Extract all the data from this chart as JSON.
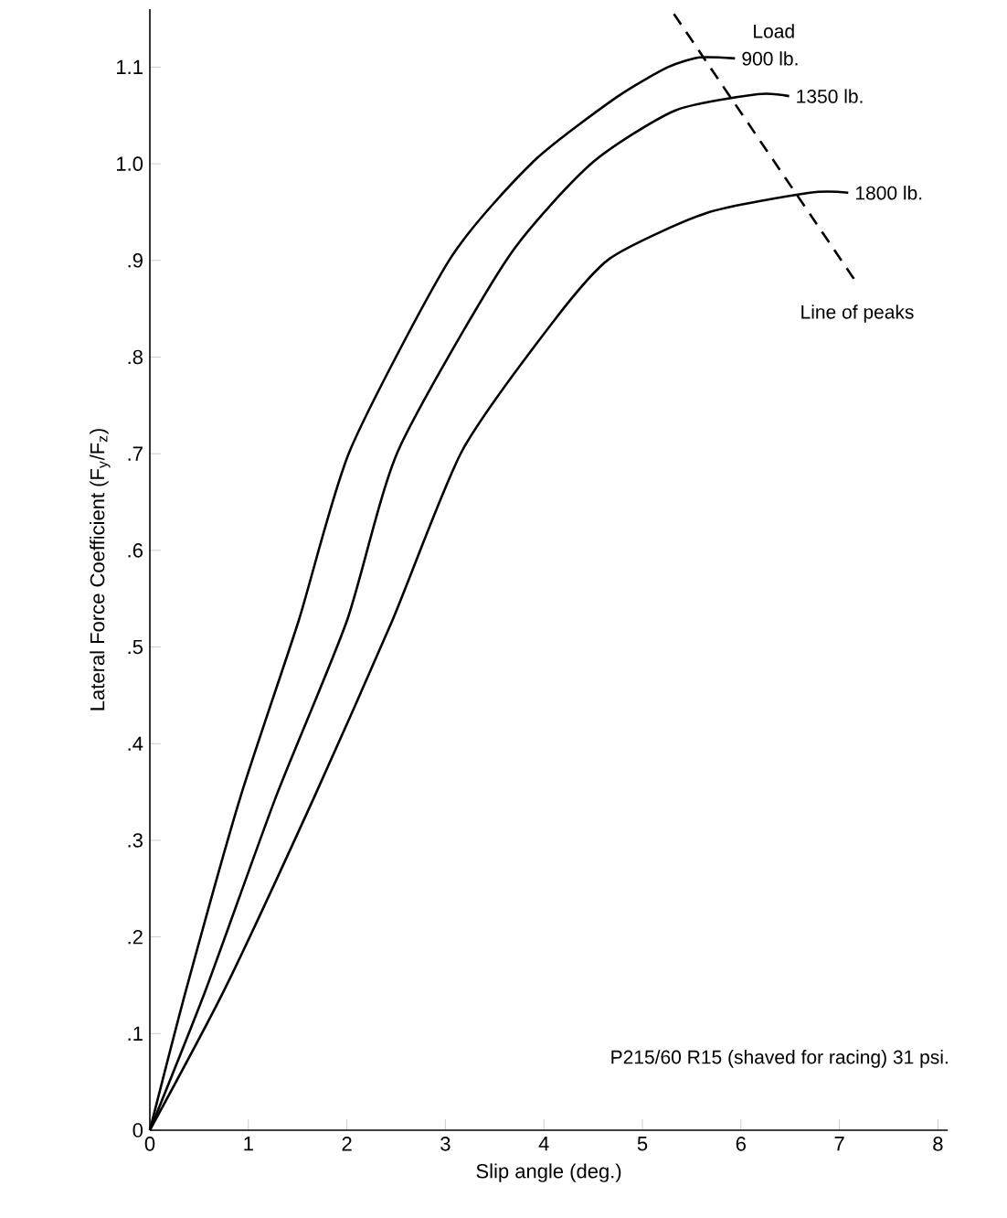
{
  "chart_data": {
    "type": "line",
    "xlabel": "Slip angle (deg.)",
    "ylabel": "Lateral Force Coefficient (F$_{y}$/F$_{z}$)",
    "legend_title": "Load",
    "xlim": [
      0,
      8.1
    ],
    "ylim": [
      0,
      1.16
    ],
    "xticks": [
      0,
      1,
      2,
      3,
      4,
      5,
      6,
      7,
      8
    ],
    "yticks": [
      0,
      {
        "value": 0.1,
        "label": ".1"
      },
      {
        "value": 0.2,
        "label": ".2"
      },
      {
        "value": 0.3,
        "label": ".3"
      },
      {
        "value": 0.4,
        "label": ".4"
      },
      {
        "value": 0.5,
        "label": ".5"
      },
      {
        "value": 0.6,
        "label": ".6"
      },
      {
        "value": 0.7,
        "label": ".7"
      },
      {
        "value": 0.8,
        "label": ".8"
      },
      {
        "value": 0.9,
        "label": ".9"
      },
      {
        "value": 1.0,
        "label": "1.0"
      },
      1.1
    ],
    "series": [
      {
        "name": "900 lb.",
        "color": "#000000",
        "x": [
          0,
          0.37,
          0.92,
          1.51,
          2.03,
          3.05,
          3.89,
          4.74,
          5.26,
          5.58,
          5.94
        ],
        "values": [
          0,
          0.146,
          0.345,
          0.527,
          0.703,
          0.902,
          1.002,
          1.069,
          1.1,
          1.11,
          1.109
        ]
      },
      {
        "name": "1350 lb.",
        "color": "#000000",
        "x": [
          0,
          0.57,
          1.28,
          2.0,
          2.52,
          3.63,
          4.48,
          5.33,
          6.17,
          6.49
        ],
        "values": [
          0,
          0.146,
          0.345,
          0.527,
          0.703,
          0.902,
          1.0,
          1.055,
          1.072,
          1.07
        ]
      },
      {
        "name": "1800 lb.",
        "color": "#000000",
        "x": [
          0,
          0.76,
          1.67,
          2.46,
          3.17,
          4.09,
          4.67,
          5.65,
          6.7,
          7.09
        ],
        "values": [
          0,
          0.146,
          0.345,
          0.527,
          0.703,
          0.836,
          0.902,
          0.949,
          0.97,
          0.97
        ]
      },
      {
        "name": "Line of peaks",
        "color": "#000000",
        "line_style": "dashed",
        "x": [
          5.32,
          7.18
        ],
        "values": [
          1.155,
          0.876
        ]
      }
    ],
    "annotations": [
      "P215/60 R15 (shaved for racing) 31 psi."
    ],
    "grid": false
  }
}
